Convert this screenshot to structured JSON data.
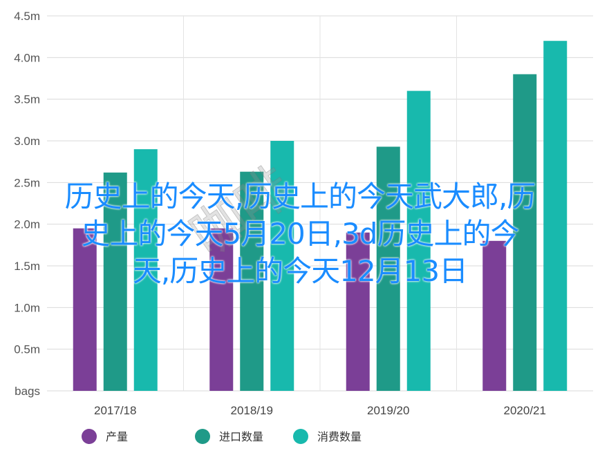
{
  "chart_data": {
    "type": "bar",
    "categories": [
      "2017/18",
      "2018/19",
      "2019/20",
      "2020/21"
    ],
    "series": [
      {
        "name": "产量",
        "color": "#7b3f97",
        "values": [
          1.95,
          1.95,
          1.9,
          1.8
        ]
      },
      {
        "name": "进口数量",
        "color": "#1f9a88",
        "values": [
          2.62,
          2.63,
          2.93,
          3.8
        ]
      },
      {
        "name": "消费数量",
        "color": "#18b9ad",
        "values": [
          2.9,
          3.0,
          3.6,
          4.2
        ]
      }
    ],
    "yticks": [
      "bags",
      "0.5m",
      "1.0m",
      "1.5m",
      "2.0m",
      "2.5m",
      "3.0m",
      "3.5m",
      "4.0m",
      "4.5m"
    ],
    "ylim": [
      0,
      4.5
    ],
    "grid": true,
    "legend": "bottom"
  },
  "overlay": {
    "line1": "历史上的今天,历史上的今天武大郎,历",
    "line2": "史上的今天5月20日,3d历史上的今",
    "line3": "天,历史上的今天12月13日"
  },
  "watermark": {
    "text": "咖啡",
    "icon": "watermark-stamp"
  }
}
